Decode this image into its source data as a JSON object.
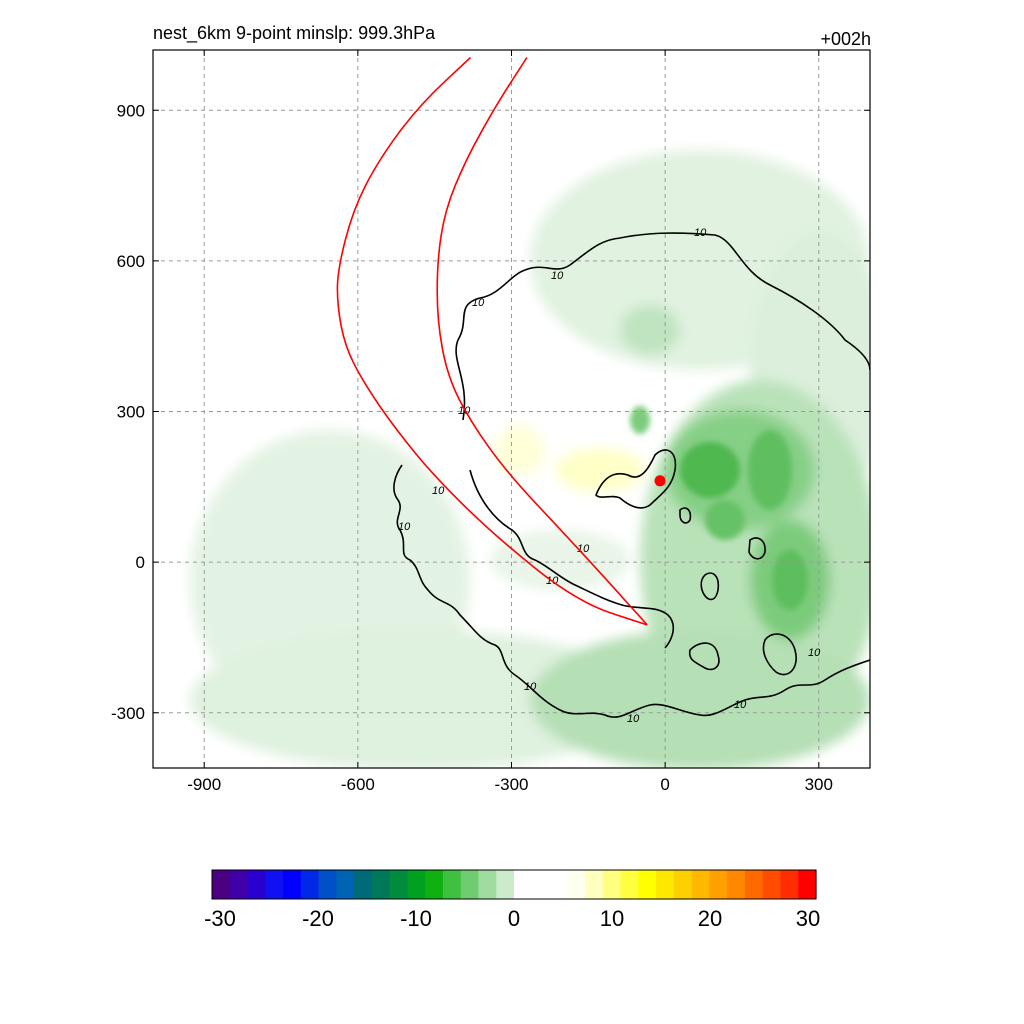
{
  "chart_data": {
    "type": "heatmap",
    "title_left": "nest_6km  9-point minslp: 999.3hPa",
    "title_right": "+002h",
    "xlim": [
      -1000,
      400
    ],
    "ylim": [
      -410,
      1020
    ],
    "x_ticks": [
      -900,
      -600,
      -300,
      0,
      300
    ],
    "y_ticks": [
      -300,
      0,
      300,
      600,
      900
    ],
    "x_tick_labels": [
      "-900",
      "-600",
      "-300",
      "0",
      "300"
    ],
    "y_tick_labels": [
      "-300",
      "0",
      "300",
      "600",
      "900"
    ],
    "grid": true,
    "grid_style": "dashed",
    "contour_level": 10,
    "contour_label": "10",
    "contour_color": "#000000",
    "storm_center": {
      "x": -10,
      "y": 162,
      "color": "#ff0000"
    },
    "track_color": "#ff0000",
    "track_outer": [
      [
        -380,
        1005
      ],
      [
        -480,
        910
      ],
      [
        -560,
        800
      ],
      [
        -610,
        700
      ],
      [
        -640,
        580
      ],
      [
        -640,
        510
      ],
      [
        -625,
        430
      ],
      [
        -590,
        360
      ],
      [
        -530,
        270
      ],
      [
        -450,
        170
      ],
      [
        -330,
        50
      ],
      [
        -170,
        -80
      ],
      [
        -35,
        -125
      ]
    ],
    "track_inner": [
      [
        -270,
        1005
      ],
      [
        -330,
        910
      ],
      [
        -390,
        800
      ],
      [
        -430,
        700
      ],
      [
        -445,
        600
      ],
      [
        -445,
        480
      ],
      [
        -425,
        370
      ],
      [
        -380,
        280
      ],
      [
        -310,
        180
      ],
      [
        -200,
        60
      ],
      [
        -110,
        -40
      ],
      [
        -35,
        -125
      ]
    ],
    "colorbar": {
      "min": -30,
      "max": 30,
      "step": 2,
      "tick_values": [
        -30,
        -20,
        -10,
        0,
        10,
        20,
        30
      ],
      "tick_labels": [
        "-30",
        "-20",
        "-10",
        "0",
        "10",
        "20",
        "30"
      ],
      "colors": [
        "#4b0082",
        "#3f00a8",
        "#2a00d0",
        "#1010f0",
        "#0000ff",
        "#0028e6",
        "#0050c8",
        "#0064b4",
        "#006a78",
        "#00795a",
        "#008c3c",
        "#00a020",
        "#10b010",
        "#40c040",
        "#70cc70",
        "#a0dca0",
        "#cbebcb",
        "#ffffff",
        "#ffffff",
        "#ffffff",
        "#fffff0",
        "#ffffc0",
        "#ffff80",
        "#ffff40",
        "#ffff00",
        "#ffe800",
        "#ffd000",
        "#ffb800",
        "#ffa000",
        "#ff8800",
        "#ff6a00",
        "#ff4c00",
        "#ff2e00",
        "#ff0000"
      ]
    }
  }
}
